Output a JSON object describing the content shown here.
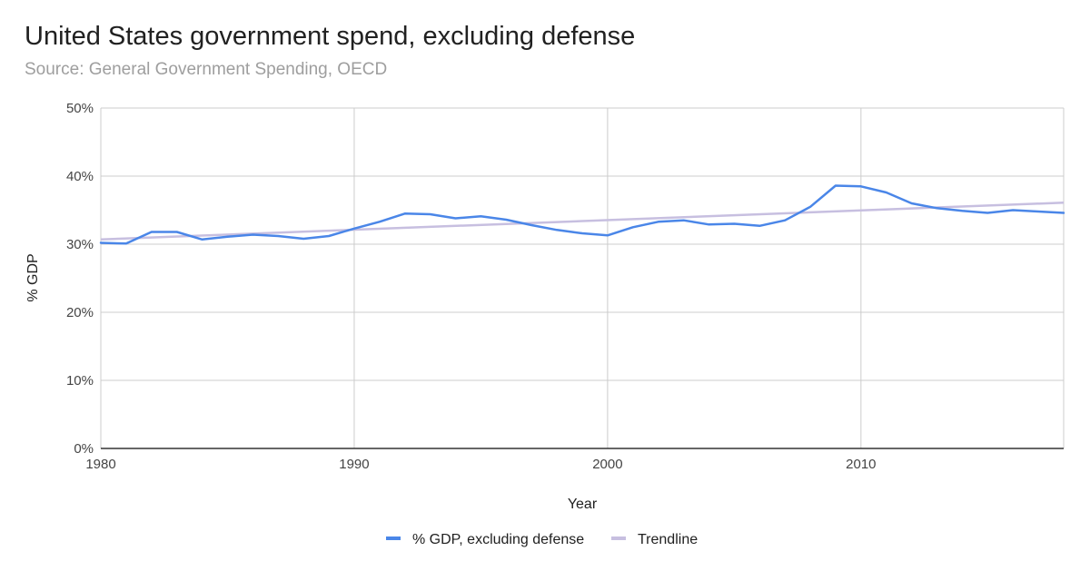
{
  "title": "United States government spend, excluding defense",
  "subtitle": "Source: General Government Spending, OECD",
  "chart_data": {
    "type": "line",
    "title": "United States government spend, excluding defense",
    "subtitle": "Source: General Government Spending, OECD",
    "xlabel": "Year",
    "ylabel": "% GDP",
    "xlim": [
      1980,
      2018
    ],
    "ylim": [
      0,
      50
    ],
    "x_ticks": [
      1980,
      1990,
      2000,
      2010
    ],
    "x_tick_labels": [
      "1980",
      "1990",
      "2000",
      "2010"
    ],
    "y_ticks": [
      0,
      10,
      20,
      30,
      40,
      50
    ],
    "y_tick_labels": [
      "0%",
      "10%",
      "20%",
      "30%",
      "40%",
      "50%"
    ],
    "grid": true,
    "legend_position": "bottom",
    "x": [
      1980,
      1981,
      1982,
      1983,
      1984,
      1985,
      1986,
      1987,
      1988,
      1989,
      1990,
      1991,
      1992,
      1993,
      1994,
      1995,
      1996,
      1997,
      1998,
      1999,
      2000,
      2001,
      2002,
      2003,
      2004,
      2005,
      2006,
      2007,
      2008,
      2009,
      2010,
      2011,
      2012,
      2013,
      2014,
      2015,
      2016,
      2017,
      2018
    ],
    "series": [
      {
        "name": "% GDP, excluding defense",
        "color": "#4a86e8",
        "values": [
          30.2,
          30.1,
          31.8,
          31.8,
          30.7,
          31.1,
          31.4,
          31.2,
          30.8,
          31.2,
          32.3,
          33.3,
          34.5,
          34.4,
          33.8,
          34.1,
          33.6,
          32.8,
          32.1,
          31.6,
          31.3,
          32.5,
          33.3,
          33.5,
          32.9,
          33.0,
          32.7,
          33.5,
          35.5,
          38.6,
          38.5,
          37.6,
          36.0,
          35.3,
          34.9,
          34.6,
          35.0,
          34.8,
          34.6
        ]
      },
      {
        "name": "Trendline",
        "color": "#c7bfe0",
        "trend": [
          30.7,
          36.1
        ]
      }
    ]
  }
}
